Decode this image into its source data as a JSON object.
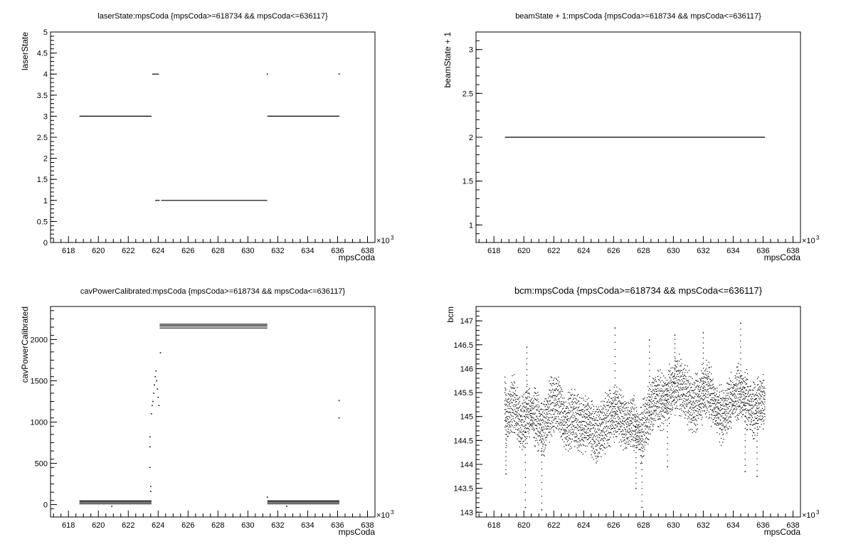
{
  "chart_data": [
    {
      "type": "scatter",
      "title": "laserState:mpsCoda {mpsCoda>=618734 && mpsCoda<=636117}",
      "xlabel": "mpsCoda",
      "ylabel": "laserState",
      "x_multiplier": "×10",
      "x_multiplier_exp": "3",
      "xlim": [
        616.8,
        638.5
      ],
      "ylim": [
        0,
        5
      ],
      "x_ticks": [
        618,
        620,
        622,
        624,
        626,
        628,
        630,
        632,
        634,
        636,
        638
      ],
      "y_ticks": [
        0,
        0.5,
        1,
        1.5,
        2,
        2.5,
        3,
        3.5,
        4,
        4.5,
        5
      ],
      "segments": [
        {
          "x": [
            618.734,
            623.55
          ],
          "y": 3
        },
        {
          "x": [
            623.6,
            624.05
          ],
          "y": 4
        },
        {
          "x": [
            623.8,
            624.1
          ],
          "y": 1
        },
        {
          "x": [
            624.2,
            631.3
          ],
          "y": 1
        },
        {
          "x": [
            631.3,
            636.117
          ],
          "y": 3
        }
      ],
      "points": [
        {
          "x": 631.3,
          "y": 4
        },
        {
          "x": 636.1,
          "y": 4
        }
      ]
    },
    {
      "type": "scatter",
      "title": "beamState + 1:mpsCoda {mpsCoda>=618734 && mpsCoda<=636117}",
      "xlabel": "mpsCoda",
      "ylabel": "beamState + 1",
      "x_multiplier": "×10",
      "x_multiplier_exp": "3",
      "xlim": [
        616.8,
        638.5
      ],
      "ylim": [
        0.8,
        3.2
      ],
      "x_ticks": [
        618,
        620,
        622,
        624,
        626,
        628,
        630,
        632,
        634,
        636,
        638
      ],
      "y_ticks": [
        1,
        1.5,
        2,
        2.5,
        3
      ],
      "segments": [
        {
          "x": [
            618.734,
            636.117
          ],
          "y": 2
        }
      ],
      "points": []
    },
    {
      "type": "scatter",
      "title": "cavPowerCalibrated:mpsCoda {mpsCoda>=618734 && mpsCoda<=636117}",
      "xlabel": "mpsCoda",
      "ylabel": "cavPowerCalibrated",
      "x_multiplier": "×10",
      "x_multiplier_exp": "3",
      "xlim": [
        616.8,
        638.5
      ],
      "ylim": [
        -150,
        2400
      ],
      "x_ticks": [
        618,
        620,
        622,
        624,
        626,
        628,
        630,
        632,
        634,
        636,
        638
      ],
      "y_ticks": [
        0,
        500,
        1000,
        1500,
        2000
      ],
      "segments": [
        {
          "x": [
            618.734,
            623.55
          ],
          "y": 10
        },
        {
          "x": [
            618.734,
            623.55
          ],
          "y": 30
        },
        {
          "x": [
            618.734,
            623.55
          ],
          "y": 45
        },
        {
          "x": [
            624.1,
            631.3
          ],
          "y": 2140
        },
        {
          "x": [
            624.1,
            631.3
          ],
          "y": 2165
        },
        {
          "x": [
            624.1,
            631.3
          ],
          "y": 2185
        },
        {
          "x": [
            631.3,
            636.117
          ],
          "y": 10
        },
        {
          "x": [
            631.3,
            636.117
          ],
          "y": 30
        },
        {
          "x": [
            631.3,
            636.117
          ],
          "y": 45
        }
      ],
      "points": [
        {
          "x": 623.45,
          "y": 450
        },
        {
          "x": 623.45,
          "y": 700
        },
        {
          "x": 623.45,
          "y": 820
        },
        {
          "x": 623.5,
          "y": 220
        },
        {
          "x": 623.5,
          "y": 160
        },
        {
          "x": 623.55,
          "y": 1100
        },
        {
          "x": 623.6,
          "y": 1200
        },
        {
          "x": 623.65,
          "y": 1250
        },
        {
          "x": 623.7,
          "y": 1350
        },
        {
          "x": 623.75,
          "y": 1450
        },
        {
          "x": 623.8,
          "y": 1550
        },
        {
          "x": 623.85,
          "y": 1620
        },
        {
          "x": 623.9,
          "y": 1500
        },
        {
          "x": 623.95,
          "y": 1400
        },
        {
          "x": 624.0,
          "y": 1300
        },
        {
          "x": 624.05,
          "y": 1200
        },
        {
          "x": 624.15,
          "y": 1840
        },
        {
          "x": 620.9,
          "y": -20
        },
        {
          "x": 632.6,
          "y": -20
        },
        {
          "x": 631.3,
          "y": 90
        },
        {
          "x": 636.1,
          "y": 1050
        },
        {
          "x": 636.1,
          "y": 1260
        }
      ]
    },
    {
      "type": "scatter",
      "title": "bcm:mpsCoda {mpsCoda>=618734 && mpsCoda<=636117}",
      "xlabel": "mpsCoda",
      "ylabel": "bcm",
      "x_multiplier": "×10",
      "x_multiplier_exp": "3",
      "xlim": [
        616.8,
        638.5
      ],
      "ylim": [
        142.9,
        147.3
      ],
      "x_ticks": [
        618,
        620,
        622,
        624,
        626,
        628,
        630,
        632,
        634,
        636,
        638
      ],
      "y_ticks": [
        143,
        143.5,
        144,
        144.5,
        145,
        145.5,
        146,
        146.5,
        147
      ],
      "band": {
        "x": [
          618.734,
          636.117
        ],
        "center": [
          [
            618.8,
            144.9
          ],
          [
            619.3,
            145.3
          ],
          [
            619.8,
            144.8
          ],
          [
            620.3,
            145.1
          ],
          [
            620.8,
            145.0
          ],
          [
            621.3,
            144.7
          ],
          [
            621.8,
            145.2
          ],
          [
            622.3,
            145.3
          ],
          [
            622.8,
            144.8
          ],
          [
            623.3,
            145.0
          ],
          [
            623.8,
            144.8
          ],
          [
            624.3,
            144.9
          ],
          [
            624.8,
            144.6
          ],
          [
            625.3,
            144.8
          ],
          [
            625.8,
            145.0
          ],
          [
            626.3,
            145.1
          ],
          [
            626.8,
            144.8
          ],
          [
            627.3,
            144.9
          ],
          [
            627.8,
            144.6
          ],
          [
            628.3,
            145.0
          ],
          [
            628.8,
            145.4
          ],
          [
            629.3,
            145.3
          ],
          [
            629.8,
            145.5
          ],
          [
            630.3,
            145.7
          ],
          [
            630.8,
            145.5
          ],
          [
            631.3,
            145.2
          ],
          [
            631.8,
            145.4
          ],
          [
            632.3,
            145.6
          ],
          [
            632.8,
            145.2
          ],
          [
            633.3,
            145.0
          ],
          [
            633.8,
            145.3
          ],
          [
            634.3,
            145.5
          ],
          [
            634.8,
            145.4
          ],
          [
            635.3,
            145.1
          ],
          [
            635.8,
            145.3
          ],
          [
            636.1,
            145.3
          ]
        ],
        "half_width": 0.45
      },
      "outliers": [
        {
          "x": 620.1,
          "y": 143.1
        },
        {
          "x": 621.2,
          "y": 143.05
        },
        {
          "x": 627.9,
          "y": 143.1
        },
        {
          "x": 626.1,
          "y": 146.85
        },
        {
          "x": 634.5,
          "y": 146.95
        },
        {
          "x": 632.0,
          "y": 146.75
        },
        {
          "x": 630.1,
          "y": 146.7
        },
        {
          "x": 628.4,
          "y": 146.6
        },
        {
          "x": 620.2,
          "y": 146.45
        },
        {
          "x": 627.5,
          "y": 143.5
        },
        {
          "x": 635.6,
          "y": 143.75
        },
        {
          "x": 618.8,
          "y": 143.8
        },
        {
          "x": 629.6,
          "y": 143.95
        },
        {
          "x": 634.8,
          "y": 143.85
        }
      ]
    }
  ]
}
